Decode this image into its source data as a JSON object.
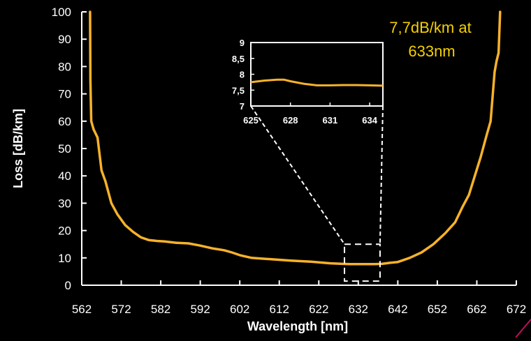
{
  "colors": {
    "background": "#000000",
    "axes": "#ffffff",
    "series": "#f6b22a",
    "annotation": "#f5d000",
    "corner_mark": "#c0105a"
  },
  "chart_data": [
    {
      "type": "line",
      "title": "",
      "xlabel": "Wavelength [nm]",
      "ylabel": "Loss [dB/km]",
      "xlim": [
        562,
        672
      ],
      "ylim": [
        0,
        100
      ],
      "xticks": [
        562,
        572,
        582,
        592,
        602,
        612,
        622,
        632,
        642,
        652,
        662,
        672
      ],
      "yticks": [
        0,
        10,
        20,
        30,
        40,
        50,
        60,
        70,
        80,
        90,
        100
      ],
      "grid": false,
      "legend": "none",
      "annotation": {
        "line1": "7,7dB/km at",
        "line2": "633nm"
      },
      "zoom_region": {
        "x": [
          628.5,
          637.5
        ],
        "y": [
          1.5,
          15
        ]
      },
      "series": [
        {
          "x": [
            564.1,
            564.2,
            564.4,
            565.0,
            566.0,
            567.0,
            568.0,
            569.5,
            571.0,
            573.0,
            575.0,
            577.0,
            579.0,
            581.0,
            583.0,
            586.0,
            589.0,
            592.0,
            595.0,
            598.0,
            600.0,
            602.0,
            605.0,
            610.0,
            615.0,
            620.0,
            625.0,
            628.0,
            630.0,
            632.0,
            634.0,
            636.0,
            638.0,
            640.0,
            642.0,
            645.0,
            648.0,
            651.0,
            654.0,
            656.5,
            658.5,
            660.0,
            661.5,
            663.0,
            664.5,
            665.5,
            666.5,
            667.0,
            667.5,
            667.9
          ],
          "y": [
            100,
            75,
            60,
            57,
            54,
            42,
            38,
            30,
            26,
            22,
            19.5,
            17.5,
            16.5,
            16.2,
            16,
            15.5,
            15.3,
            14.5,
            13.5,
            12.8,
            12,
            11,
            10,
            9.5,
            9,
            8.6,
            8,
            7.8,
            7.7,
            7.7,
            7.7,
            7.7,
            7.8,
            8.2,
            8.5,
            10,
            12,
            15,
            19,
            23,
            29,
            33,
            40,
            47,
            55,
            60,
            78,
            82,
            85,
            100
          ]
        }
      ]
    },
    {
      "type": "line",
      "title": "",
      "xlabel": "",
      "ylabel": "",
      "xlim": [
        625,
        635
      ],
      "ylim": [
        7,
        9
      ],
      "xticks": [
        625,
        628,
        631,
        634
      ],
      "xtick_labels": [
        "625",
        "628",
        "631",
        "634"
      ],
      "yticks": [
        7,
        7.5,
        8,
        8.5,
        9
      ],
      "ytick_labels": [
        "7",
        "7,5",
        "8",
        "8,5",
        "9"
      ],
      "grid": false,
      "legend": "none",
      "series": [
        {
          "x": [
            625,
            626,
            627,
            627.5,
            628,
            629,
            630,
            631,
            632,
            633,
            634,
            635
          ],
          "y": [
            7.75,
            7.8,
            7.83,
            7.83,
            7.78,
            7.7,
            7.65,
            7.65,
            7.66,
            7.66,
            7.65,
            7.64
          ]
        }
      ]
    }
  ]
}
